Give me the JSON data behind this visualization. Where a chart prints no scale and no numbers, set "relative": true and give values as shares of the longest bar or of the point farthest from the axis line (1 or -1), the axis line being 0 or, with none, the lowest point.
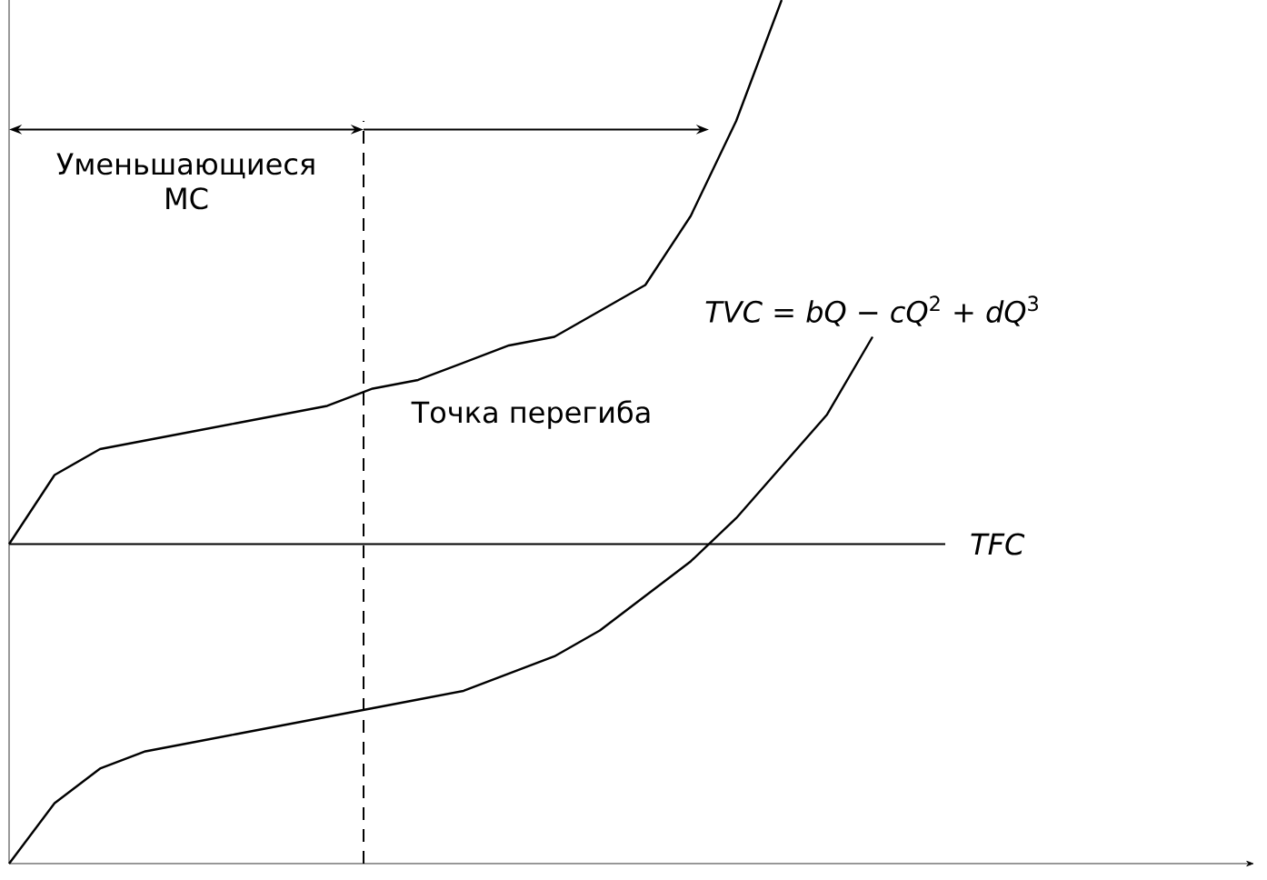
{
  "chart_data": {
    "type": "line",
    "relative": true,
    "marker": "none",
    "line_style": "solid",
    "categories": [
      null,
      null,
      null,
      null,
      null,
      null,
      null,
      null,
      null,
      null,
      null,
      null,
      null,
      null,
      null,
      null,
      null,
      null,
      null,
      null,
      null,
      null,
      null,
      null,
      null,
      null,
      null,
      null
    ],
    "series": [
      {
        "color": "#000000",
        "values": [
          0.37,
          0.45,
          0.48,
          0.49,
          0.5,
          0.51,
          0.52,
          0.53,
          0.55,
          0.56,
          0.58,
          0.6,
          0.61,
          0.64,
          0.67,
          0.75,
          0.86,
          1,
          null,
          null,
          null,
          null,
          null,
          null,
          null,
          null,
          null,
          null
        ]
      },
      {
        "name": "*TVC* = *bQ* − *cQ*$^{2}$ + *dQ*$^{3}$",
        "color": "#000000",
        "values": [
          0,
          0.07,
          0.11,
          0.13,
          0.14,
          0.15,
          0.16,
          0.17,
          0.18,
          0.19,
          0.2,
          0.22,
          0.24,
          0.27,
          0.31,
          0.35,
          0.4,
          0.46,
          0.52,
          0.61,
          null,
          null,
          null,
          null,
          null,
          null,
          null,
          null
        ]
      }
    ],
    "ref_lines": [
      {
        "axis": "y",
        "value": 0.37,
        "label": "*TFC*",
        "color": "#000000",
        "line_style": "solid"
      }
    ],
    "annotations": [
      "Уменьшающиеся МС",
      "Точка перегиба"
    ]
  }
}
